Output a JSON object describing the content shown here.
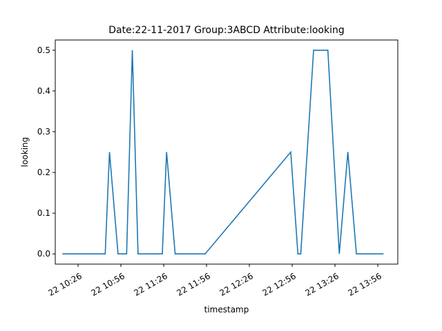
{
  "chart_data": {
    "type": "line",
    "title": "Date:22-11-2017  Group:3ABCD Attribute:looking",
    "xlabel": "timestamp",
    "ylabel": "looking",
    "xlim": [
      "2017-11-22 10:10",
      "2017-11-22 14:10"
    ],
    "ylim": [
      -0.025,
      0.525
    ],
    "x_ticks": [
      {
        "x": "2017-11-22 10:26",
        "label": "22 10:26"
      },
      {
        "x": "2017-11-22 10:56",
        "label": "22 10:56"
      },
      {
        "x": "2017-11-22 11:26",
        "label": "22 11:26"
      },
      {
        "x": "2017-11-22 11:56",
        "label": "22 11:56"
      },
      {
        "x": "2017-11-22 12:26",
        "label": "22 12:26"
      },
      {
        "x": "2017-11-22 12:56",
        "label": "22 12:56"
      },
      {
        "x": "2017-11-22 13:26",
        "label": "22 13:26"
      },
      {
        "x": "2017-11-22 13:56",
        "label": "22 13:56"
      }
    ],
    "y_ticks": [
      {
        "y": 0.0,
        "label": "0.0"
      },
      {
        "y": 0.1,
        "label": "0.1"
      },
      {
        "y": 0.2,
        "label": "0.2"
      },
      {
        "y": 0.3,
        "label": "0.3"
      },
      {
        "y": 0.4,
        "label": "0.4"
      },
      {
        "y": 0.5,
        "label": "0.5"
      }
    ],
    "grid": false,
    "series": [
      {
        "color": "#1f77b4",
        "points": [
          {
            "x": "2017-11-22 10:15",
            "y": 0.0
          },
          {
            "x": "2017-11-22 10:45",
            "y": 0.0
          },
          {
            "x": "2017-11-22 10:48",
            "y": 0.25
          },
          {
            "x": "2017-11-22 10:54",
            "y": 0.0
          },
          {
            "x": "2017-11-22 11:00",
            "y": 0.0
          },
          {
            "x": "2017-11-22 11:04",
            "y": 0.5
          },
          {
            "x": "2017-11-22 11:08",
            "y": 0.0
          },
          {
            "x": "2017-11-22 11:25",
            "y": 0.0
          },
          {
            "x": "2017-11-22 11:28",
            "y": 0.25
          },
          {
            "x": "2017-11-22 11:34",
            "y": 0.0
          },
          {
            "x": "2017-11-22 11:55",
            "y": 0.0
          },
          {
            "x": "2017-11-22 12:55",
            "y": 0.25
          },
          {
            "x": "2017-11-22 13:00",
            "y": 0.0
          },
          {
            "x": "2017-11-22 13:02",
            "y": 0.0
          },
          {
            "x": "2017-11-22 13:11",
            "y": 0.5
          },
          {
            "x": "2017-11-22 13:21",
            "y": 0.5
          },
          {
            "x": "2017-11-22 13:29",
            "y": 0.0
          },
          {
            "x": "2017-11-22 13:35",
            "y": 0.25
          },
          {
            "x": "2017-11-22 13:41",
            "y": 0.0
          },
          {
            "x": "2017-11-22 14:00",
            "y": 0.0
          }
        ]
      }
    ]
  }
}
